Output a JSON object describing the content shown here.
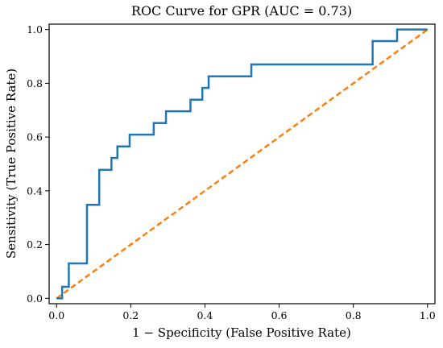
{
  "chart_data": {
    "type": "line",
    "title": "ROC Curve for GPR (AUC = 0.73)",
    "xlabel": "1 − Specificity (False Positive Rate)",
    "ylabel": "Sensitivity (True Positive Rate)",
    "xlim": [
      -0.02,
      1.02
    ],
    "ylim": [
      -0.02,
      1.02
    ],
    "xticks": [
      0.0,
      0.2,
      0.4,
      0.6,
      0.8,
      1.0
    ],
    "yticks": [
      0.0,
      0.2,
      0.4,
      0.6,
      0.8,
      1.0
    ],
    "xtick_labels": [
      "0.0",
      "0.2",
      "0.4",
      "0.6",
      "0.8",
      "1.0"
    ],
    "ytick_labels": [
      "0.0",
      "0.2",
      "0.4",
      "0.6",
      "0.8",
      "1.0"
    ],
    "grid": false,
    "series": [
      {
        "color": "#1f77b4",
        "line_style": "solid",
        "step": true,
        "x": [
          0.0,
          0.0,
          0.015,
          0.015,
          0.033,
          0.033,
          0.082,
          0.082,
          0.115,
          0.115,
          0.148,
          0.148,
          0.164,
          0.164,
          0.197,
          0.197,
          0.262,
          0.262,
          0.295,
          0.295,
          0.361,
          0.361,
          0.393,
          0.393,
          0.41,
          0.41,
          0.525,
          0.525,
          0.852,
          0.852,
          0.918,
          0.918,
          1.0
        ],
        "y": [
          0.0,
          0.0,
          0.0,
          0.043,
          0.043,
          0.13,
          0.13,
          0.348,
          0.348,
          0.478,
          0.478,
          0.522,
          0.522,
          0.565,
          0.565,
          0.609,
          0.609,
          0.652,
          0.652,
          0.696,
          0.696,
          0.739,
          0.739,
          0.783,
          0.783,
          0.826,
          0.826,
          0.87,
          0.87,
          0.957,
          0.957,
          1.0,
          1.0
        ]
      },
      {
        "color": "#ff7f0e",
        "line_style": "dashed",
        "x": [
          0.0,
          1.0
        ],
        "y": [
          0.0,
          1.0
        ]
      }
    ]
  }
}
